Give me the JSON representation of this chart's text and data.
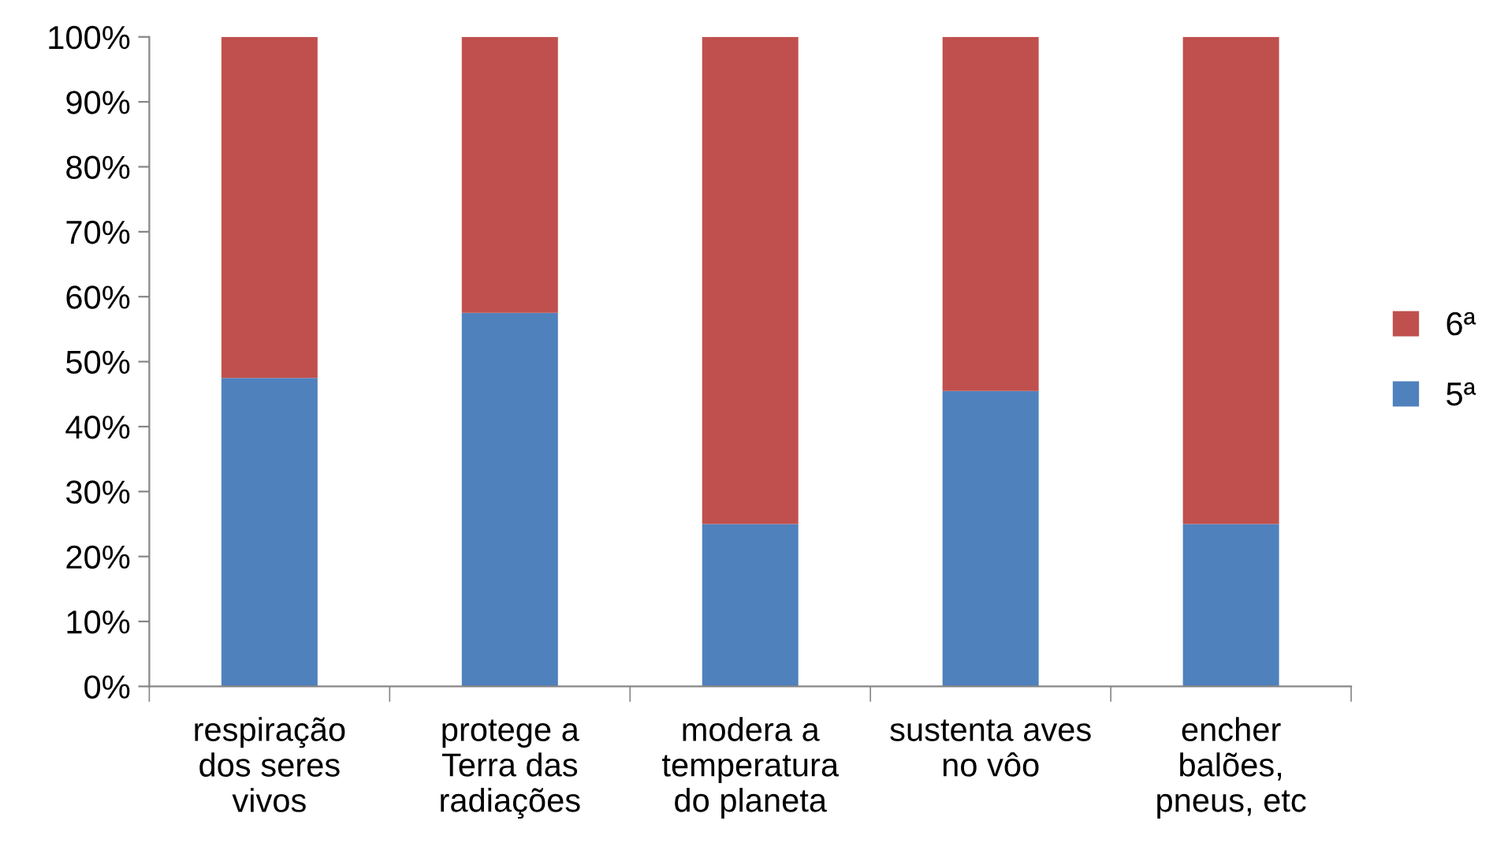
{
  "chart_data": {
    "type": "bar",
    "stacked": true,
    "categories": [
      "respiração\ndos seres\nvivos",
      "protege a\nTerra das\nradiações",
      "modera a\ntemperatura\ndo planeta",
      "sustenta aves\nno vôo",
      "encher\nbalões,\npneus, etc"
    ],
    "series": [
      {
        "name": "5ª",
        "color": "#4f81bd",
        "values": [
          47.5,
          57.5,
          25,
          45.5,
          25
        ]
      },
      {
        "name": "6ª",
        "color": "#c0504d",
        "values": [
          52.5,
          42.5,
          75,
          54.5,
          75
        ]
      }
    ],
    "ylim": [
      0,
      100
    ],
    "yticks": [
      {
        "value": 0,
        "label": "0%"
      },
      {
        "value": 10,
        "label": "10%"
      },
      {
        "value": 20,
        "label": "20%"
      },
      {
        "value": 30,
        "label": "30%"
      },
      {
        "value": 40,
        "label": "40%"
      },
      {
        "value": 50,
        "label": "50%"
      },
      {
        "value": 60,
        "label": "60%"
      },
      {
        "value": 70,
        "label": "70%"
      },
      {
        "value": 80,
        "label": "80%"
      },
      {
        "value": 90,
        "label": "90%"
      },
      {
        "value": 100,
        "label": "100%"
      }
    ],
    "legend": "right"
  }
}
